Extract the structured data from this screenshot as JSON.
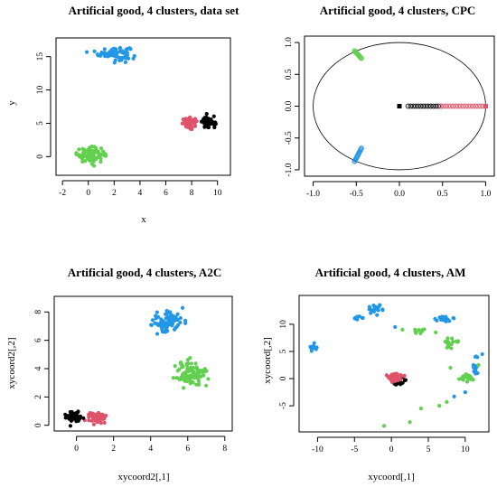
{
  "colors": {
    "black": "#000000",
    "red": "#DF536B",
    "green": "#61D04F",
    "blue": "#2297E6"
  },
  "chart_data": [
    {
      "id": "p1",
      "type": "scatter",
      "title": "Artificial good, 4 clusters, data set",
      "xlabel": "x",
      "ylabel": "y",
      "xlim": [
        -2.5,
        11
      ],
      "ylim": [
        -2.8,
        17.8
      ],
      "xticks": [
        -2,
        0,
        2,
        4,
        6,
        8,
        10
      ],
      "yticks": [
        0,
        5,
        10,
        15
      ],
      "clusters": [
        {
          "color": "blue",
          "center": [
            2.0,
            15.5
          ],
          "spread": [
            1.1,
            0.9
          ],
          "n": 90,
          "shape": "circle"
        },
        {
          "color": "green",
          "center": [
            0.2,
            0.3
          ],
          "spread": [
            1.0,
            1.0
          ],
          "n": 90,
          "shape": "circle"
        },
        {
          "color": "red",
          "center": [
            7.9,
            5.0
          ],
          "spread": [
            0.55,
            0.7
          ],
          "n": 60,
          "shape": "circle"
        },
        {
          "color": "black",
          "center": [
            9.3,
            5.1
          ],
          "spread": [
            0.45,
            0.8
          ],
          "n": 60,
          "shape": "circle"
        }
      ]
    },
    {
      "id": "p2",
      "type": "scatter",
      "title": "Artificial good, 4 clusters, CPC",
      "xlabel": "",
      "ylabel": "",
      "xlim": [
        -1.1,
        1.1
      ],
      "ylim": [
        -1.1,
        1.1
      ],
      "xticks": [
        -1.0,
        -0.5,
        0.0,
        0.5,
        1.0
      ],
      "yticks": [
        -1.0,
        -0.5,
        0.0,
        0.5,
        1.0
      ],
      "circle": {
        "cx": 0,
        "cy": 0,
        "r": 1
      },
      "filled_squares": [
        {
          "color": "black",
          "x": 0.0,
          "y": 0.0
        },
        {
          "color": "red",
          "x": 1.0,
          "y": 0.0
        }
      ],
      "arcs": [
        {
          "color": "green",
          "from": [
            -0.52,
            0.87
          ],
          "to": [
            -0.44,
            0.75
          ],
          "n": 14
        },
        {
          "color": "blue",
          "from": [
            -0.52,
            -0.87
          ],
          "to": [
            -0.44,
            -0.66
          ],
          "n": 14
        }
      ],
      "axis_rings": [
        {
          "color": "black",
          "x_from": 0.1,
          "x_to": 0.48,
          "n": 14
        },
        {
          "color": "red",
          "x_from": 0.48,
          "x_to": 0.97,
          "n": 18
        }
      ]
    },
    {
      "id": "p3",
      "type": "scatter",
      "title": "Artificial good, 4 clusters, A2C",
      "xlabel": "xycoord2[,1]",
      "ylabel": "xycoord2[,2]",
      "xlim": [
        -1.2,
        8.4
      ],
      "ylim": [
        -0.4,
        9.1
      ],
      "xticks": [
        0,
        2,
        4,
        6,
        8
      ],
      "yticks": [
        0,
        2,
        4,
        6,
        8
      ],
      "clusters": [
        {
          "color": "blue",
          "center": [
            4.9,
            7.3
          ],
          "spread": [
            0.8,
            0.7
          ],
          "n": 90,
          "shape": "circle"
        },
        {
          "color": "green",
          "center": [
            6.2,
            3.6
          ],
          "spread": [
            0.75,
            0.8
          ],
          "n": 90,
          "shape": "circle"
        },
        {
          "color": "red",
          "center": [
            1.1,
            0.5
          ],
          "spread": [
            0.45,
            0.35
          ],
          "n": 60,
          "shape": "circle"
        },
        {
          "color": "black",
          "center": [
            -0.1,
            0.6
          ],
          "spread": [
            0.4,
            0.35
          ],
          "n": 60,
          "shape": "circle"
        }
      ]
    },
    {
      "id": "p4",
      "type": "scatter",
      "title": "Artificial good, 4 clusters, AM",
      "xlabel": "xycoord[,1]",
      "ylabel": "xycoord[,2]",
      "xlim": [
        -12.5,
        13.2
      ],
      "ylim": [
        -9.8,
        15.3
      ],
      "xticks": [
        -10,
        -5,
        0,
        5,
        10
      ],
      "yticks": [
        -5,
        0,
        5,
        10
      ],
      "clusters": [
        {
          "color": "black",
          "center": [
            0.7,
            -0.3
          ],
          "spread": [
            0.8,
            0.8
          ],
          "n": 55,
          "shape": "circle"
        },
        {
          "color": "red",
          "center": [
            0.5,
            0.2
          ],
          "spread": [
            0.9,
            0.8
          ],
          "n": 55,
          "shape": "circle"
        },
        {
          "color": "blue",
          "center": [
            -10.5,
            5.8
          ],
          "spread": [
            0.5,
            0.8
          ],
          "n": 12,
          "shape": "circle"
        },
        {
          "color": "blue",
          "center": [
            -2.0,
            12.8
          ],
          "spread": [
            0.9,
            0.6
          ],
          "n": 20,
          "shape": "circle"
        },
        {
          "color": "blue",
          "center": [
            -4.5,
            11.2
          ],
          "spread": [
            0.6,
            0.5
          ],
          "n": 10,
          "shape": "circle"
        },
        {
          "color": "blue",
          "center": [
            7.0,
            11.0
          ],
          "spread": [
            1.0,
            0.4
          ],
          "n": 22,
          "shape": "circle"
        },
        {
          "color": "blue",
          "center": [
            11.5,
            2.0
          ],
          "spread": [
            0.5,
            1.5
          ],
          "n": 14,
          "shape": "circle"
        },
        {
          "color": "green",
          "center": [
            8.0,
            6.5
          ],
          "spread": [
            0.8,
            1.0
          ],
          "n": 20,
          "shape": "circle"
        },
        {
          "color": "green",
          "center": [
            10.0,
            0.2
          ],
          "spread": [
            0.8,
            0.6
          ],
          "n": 20,
          "shape": "circle"
        },
        {
          "color": "green",
          "center": [
            4.0,
            8.8
          ],
          "spread": [
            1.2,
            0.8
          ],
          "n": 10,
          "shape": "circle"
        }
      ],
      "sparse_points": [
        {
          "color": "green",
          "x": -1.0,
          "y": -8.7
        },
        {
          "color": "green",
          "x": 2.5,
          "y": -8.0
        },
        {
          "color": "green",
          "x": 4.0,
          "y": -5.5
        },
        {
          "color": "green",
          "x": 6.5,
          "y": -5.0
        },
        {
          "color": "green",
          "x": 7.5,
          "y": -4.3
        },
        {
          "color": "blue",
          "x": 8.5,
          "y": -3.3
        },
        {
          "color": "blue",
          "x": 10.0,
          "y": -2.5
        },
        {
          "color": "green",
          "x": 11.8,
          "y": 2.5
        },
        {
          "color": "green",
          "x": 8.0,
          "y": 2.0
        },
        {
          "color": "blue",
          "x": 0.5,
          "y": 9.5
        },
        {
          "color": "green",
          "x": 1.5,
          "y": 9.0
        },
        {
          "color": "green",
          "x": 6.0,
          "y": 8.5
        },
        {
          "color": "blue",
          "x": 12.3,
          "y": 4.5
        }
      ]
    }
  ]
}
